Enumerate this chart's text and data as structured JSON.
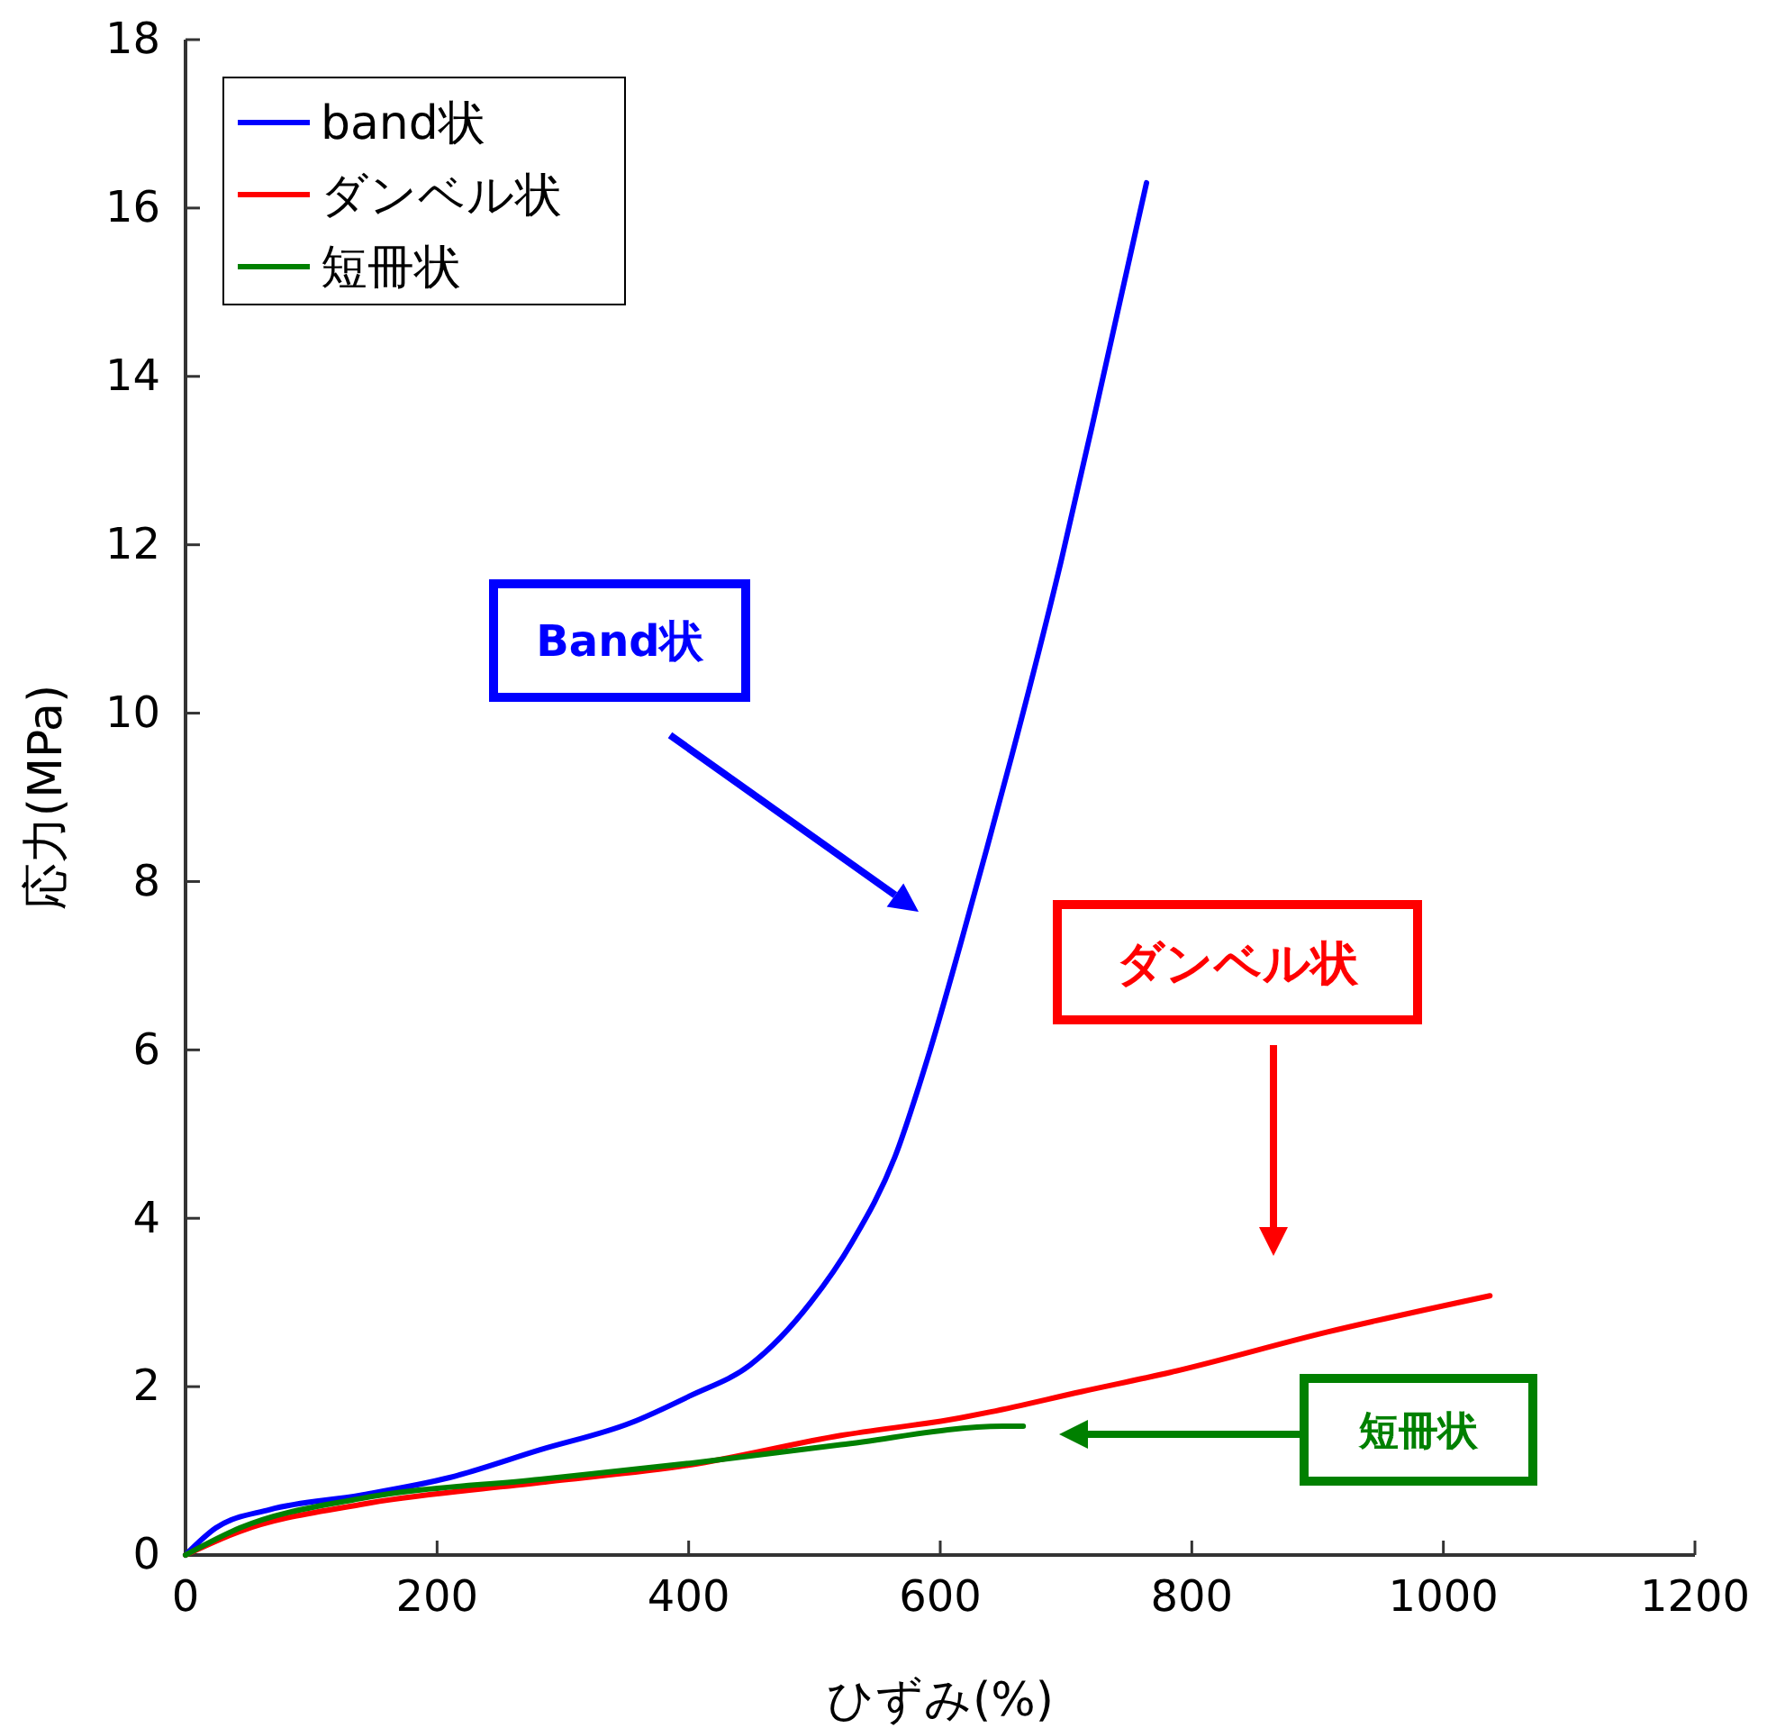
{
  "chart_data": {
    "type": "line",
    "xlabel": "ひずみ(%)",
    "ylabel": "応力(MPa)",
    "xlim": [
      0,
      1200
    ],
    "xticks": [
      0,
      200,
      400,
      600,
      800,
      1000,
      1200
    ],
    "ylim": [
      0,
      18
    ],
    "yticks": [
      0,
      2,
      4,
      6,
      8,
      10,
      12,
      14,
      16,
      18
    ],
    "grid": false,
    "legend": "top left",
    "marker": "none",
    "line_style": "solid",
    "series": [
      {
        "name": "band状",
        "color": "#0000ff",
        "x": [
          0,
          24,
          67,
          139,
          210,
          282,
          354,
          401,
          449,
          497,
          530,
          564,
          592,
          616,
          637,
          657,
          696,
          726,
          749,
          764
        ],
        "values": [
          0,
          0.32,
          0.54,
          0.71,
          0.92,
          1.25,
          1.57,
          1.89,
          2.26,
          3.0,
          3.72,
          4.73,
          6.0,
          7.25,
          8.39,
          9.5,
          11.8,
          13.76,
          15.3,
          16.3
        ]
      },
      {
        "name": "ダンベル状",
        "color": "#ff0000",
        "x": [
          0,
          43,
          139,
          282,
          401,
          521,
          616,
          640,
          712,
          783,
          908,
          1037
        ],
        "values": [
          0,
          0.28,
          0.6,
          0.86,
          1.07,
          1.42,
          1.63,
          1.7,
          1.94,
          2.17,
          2.65,
          3.08
        ]
      },
      {
        "name": "短冊状",
        "color": "#008000",
        "x": [
          0,
          43,
          139,
          282,
          401,
          521,
          650,
          666
        ],
        "values": [
          0,
          0.32,
          0.67,
          0.9,
          1.09,
          1.31,
          1.53,
          1.53
        ]
      }
    ],
    "annotations": [
      "Band状",
      "ダンベル状",
      "短冊状"
    ]
  }
}
